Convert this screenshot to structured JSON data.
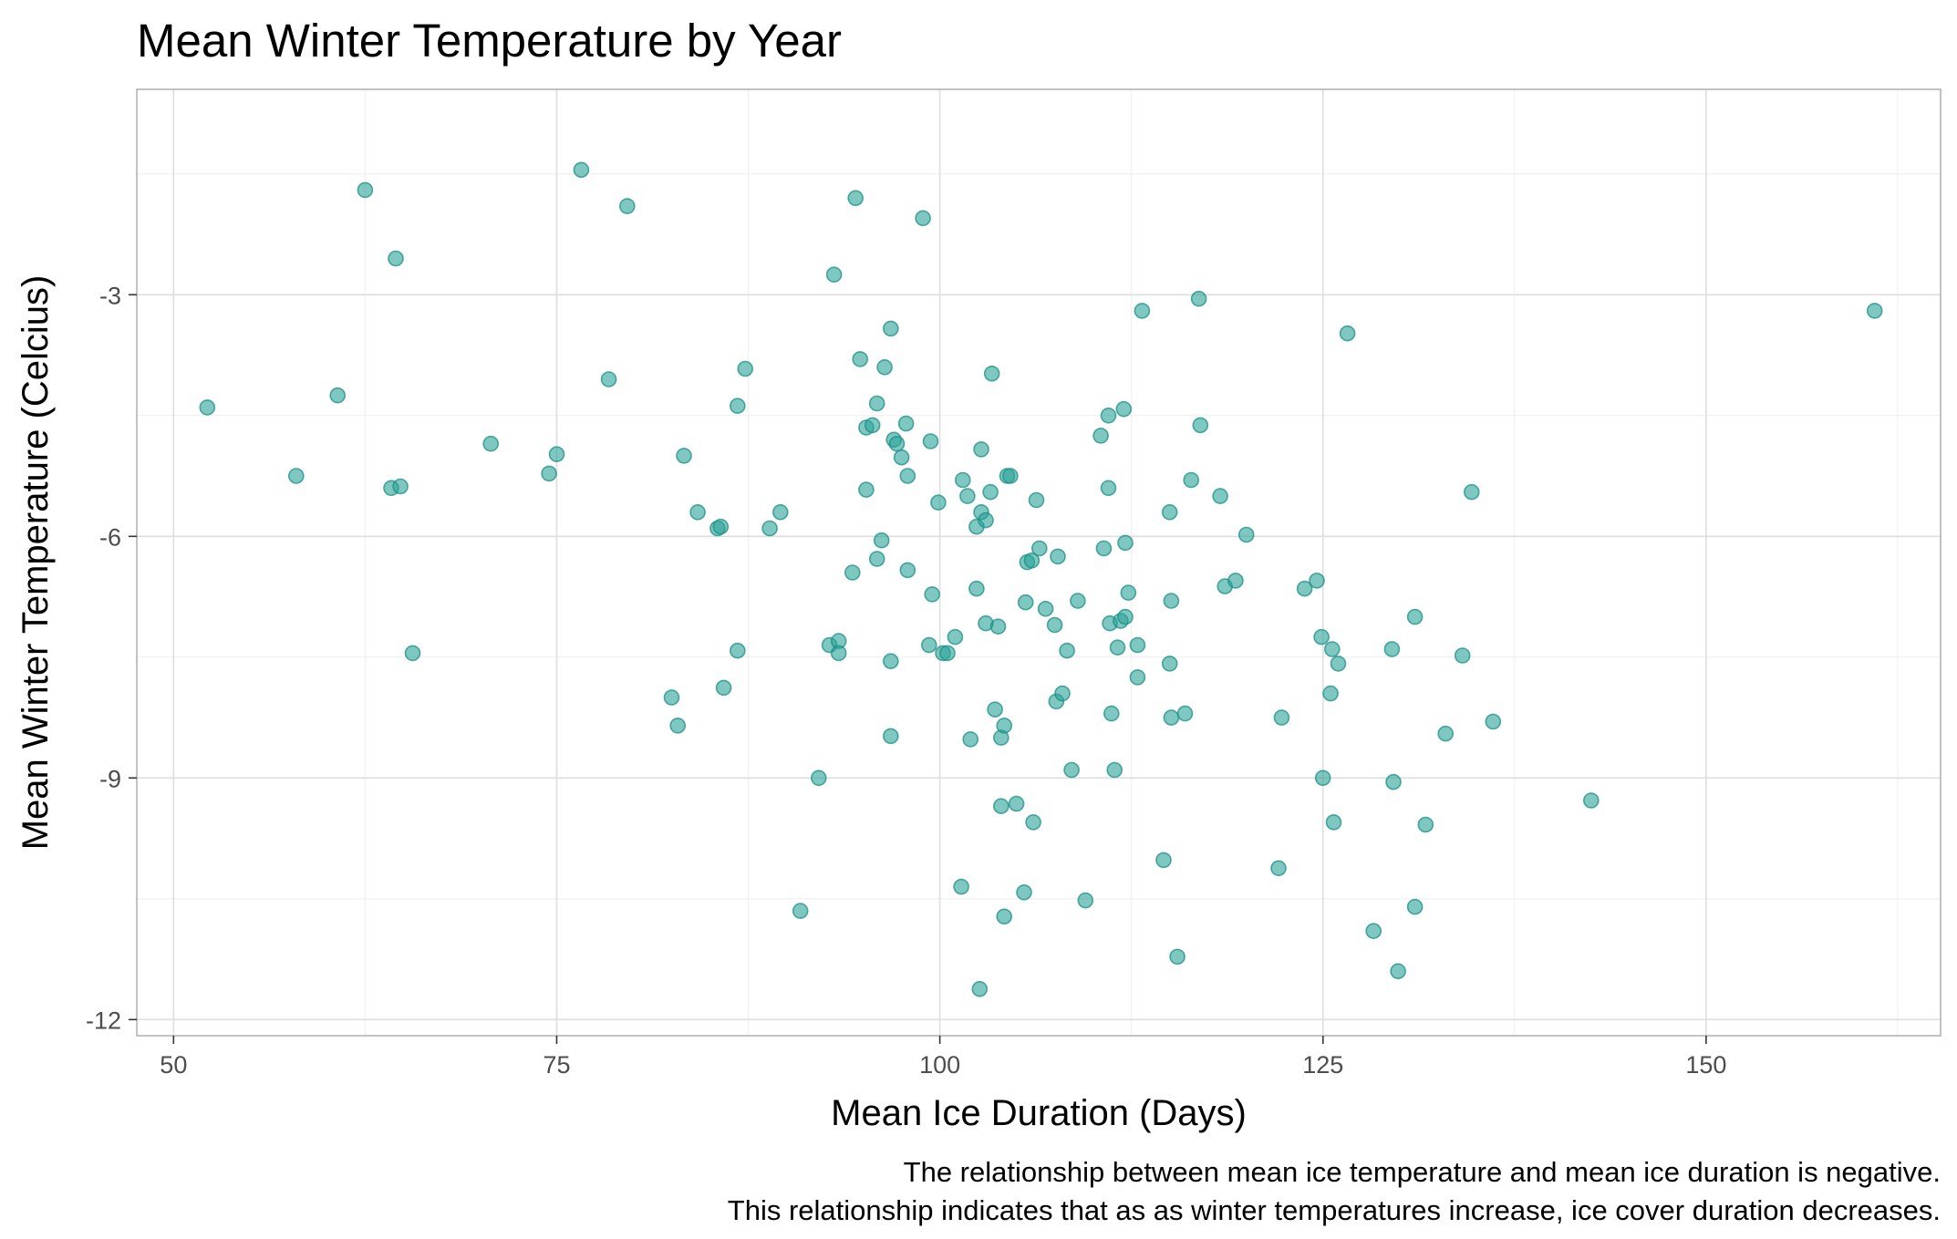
{
  "chart_data": {
    "type": "scatter",
    "title": "Mean Winter Temperature by Year",
    "xlabel": "Mean Ice Duration (Days)",
    "ylabel": "Mean Winter Temperature (Celcius)",
    "caption_lines": [
      "The relationship between mean ice temperature and mean ice duration is negative.",
      "This relationship indicates that as as winter temperatures increase, ice cover duration decreases."
    ],
    "xlim": [
      47.6,
      165.3
    ],
    "ylim": [
      -12.2,
      -0.45
    ],
    "x_ticks": [
      50,
      75,
      100,
      125,
      150
    ],
    "y_ticks": [
      -3,
      -6,
      -9,
      -12
    ],
    "x_tick_labels": [
      "50",
      "75",
      "100",
      "125",
      "150"
    ],
    "y_tick_labels": [
      "-3",
      "-6",
      "-9",
      "-12"
    ],
    "grid": true,
    "point_color": "#2aa198",
    "point_stroke": "#1a8f86",
    "points": [
      [
        52.2,
        -4.4
      ],
      [
        58,
        -5.25
      ],
      [
        60.7,
        -4.25
      ],
      [
        62.5,
        -1.7
      ],
      [
        64.2,
        -5.4
      ],
      [
        64.5,
        -2.55
      ],
      [
        64.8,
        -5.38
      ],
      [
        65.6,
        -7.45
      ],
      [
        70.7,
        -4.85
      ],
      [
        74.5,
        -5.22
      ],
      [
        75.0,
        -4.98
      ],
      [
        76.6,
        -1.45
      ],
      [
        78.4,
        -4.05
      ],
      [
        79.6,
        -1.9
      ],
      [
        82.5,
        -8.0
      ],
      [
        82.9,
        -8.35
      ],
      [
        83.3,
        -5.0
      ],
      [
        84.2,
        -5.7
      ],
      [
        85.5,
        -5.9
      ],
      [
        85.7,
        -5.88
      ],
      [
        85.9,
        -7.88
      ],
      [
        86.8,
        -4.38
      ],
      [
        86.8,
        -7.42
      ],
      [
        87.3,
        -3.92
      ],
      [
        88.9,
        -5.9
      ],
      [
        89.6,
        -5.7
      ],
      [
        90.9,
        -10.65
      ],
      [
        92.1,
        -9.0
      ],
      [
        92.8,
        -7.35
      ],
      [
        93.1,
        -2.75
      ],
      [
        93.4,
        -7.3
      ],
      [
        93.4,
        -7.45
      ],
      [
        94.3,
        -6.45
      ],
      [
        94.5,
        -1.8
      ],
      [
        94.8,
        -3.8
      ],
      [
        95.2,
        -4.65
      ],
      [
        95.2,
        -5.42
      ],
      [
        95.6,
        -4.62
      ],
      [
        95.9,
        -4.35
      ],
      [
        95.9,
        -6.28
      ],
      [
        96.2,
        -6.05
      ],
      [
        96.4,
        -3.9
      ],
      [
        96.8,
        -3.42
      ],
      [
        96.8,
        -7.55
      ],
      [
        96.8,
        -8.48
      ],
      [
        97.0,
        -4.8
      ],
      [
        97.2,
        -4.85
      ],
      [
        97.5,
        -5.02
      ],
      [
        97.8,
        -4.6
      ],
      [
        97.9,
        -5.25
      ],
      [
        97.9,
        -6.42
      ],
      [
        98.9,
        -2.05
      ],
      [
        99.3,
        -7.35
      ],
      [
        99.4,
        -4.82
      ],
      [
        99.5,
        -6.72
      ],
      [
        99.9,
        -5.58
      ],
      [
        100.2,
        -7.45
      ],
      [
        100.5,
        -7.45
      ],
      [
        101.0,
        -7.25
      ],
      [
        101.4,
        -10.35
      ],
      [
        101.5,
        -5.3
      ],
      [
        101.8,
        -5.5
      ],
      [
        102.0,
        -8.52
      ],
      [
        102.4,
        -5.88
      ],
      [
        102.4,
        -6.65
      ],
      [
        102.6,
        -11.62
      ],
      [
        102.7,
        -5.7
      ],
      [
        102.7,
        -4.92
      ],
      [
        103.0,
        -5.8
      ],
      [
        103.0,
        -7.08
      ],
      [
        103.3,
        -5.45
      ],
      [
        103.4,
        -3.98
      ],
      [
        103.6,
        -8.15
      ],
      [
        103.8,
        -7.12
      ],
      [
        104.0,
        -8.5
      ],
      [
        104.0,
        -9.35
      ],
      [
        104.2,
        -8.35
      ],
      [
        104.2,
        -10.72
      ],
      [
        104.4,
        -5.25
      ],
      [
        104.6,
        -5.25
      ],
      [
        105.0,
        -9.32
      ],
      [
        105.5,
        -10.42
      ],
      [
        105.6,
        -6.82
      ],
      [
        105.7,
        -6.32
      ],
      [
        106.0,
        -6.3
      ],
      [
        106.1,
        -9.55
      ],
      [
        106.3,
        -5.55
      ],
      [
        106.5,
        -6.15
      ],
      [
        106.9,
        -6.9
      ],
      [
        107.5,
        -7.1
      ],
      [
        107.6,
        -8.05
      ],
      [
        107.7,
        -6.25
      ],
      [
        108.0,
        -7.95
      ],
      [
        108.3,
        -7.42
      ],
      [
        108.6,
        -8.9
      ],
      [
        109.0,
        -6.8
      ],
      [
        109.5,
        -10.52
      ],
      [
        110.5,
        -4.75
      ],
      [
        110.7,
        -6.15
      ],
      [
        111.0,
        -5.4
      ],
      [
        111.0,
        -4.5
      ],
      [
        111.1,
        -7.08
      ],
      [
        111.2,
        -8.2
      ],
      [
        111.4,
        -8.9
      ],
      [
        111.6,
        -7.38
      ],
      [
        111.8,
        -7.05
      ],
      [
        112.0,
        -4.42
      ],
      [
        112.1,
        -7.0
      ],
      [
        112.1,
        -6.08
      ],
      [
        112.3,
        -6.7
      ],
      [
        112.9,
        -7.35
      ],
      [
        112.9,
        -7.75
      ],
      [
        113.2,
        -3.2
      ],
      [
        114.6,
        -10.02
      ],
      [
        115.0,
        -5.7
      ],
      [
        115.0,
        -7.58
      ],
      [
        115.1,
        -6.8
      ],
      [
        115.1,
        -8.25
      ],
      [
        115.5,
        -11.22
      ],
      [
        116.0,
        -8.2
      ],
      [
        116.4,
        -5.3
      ],
      [
        116.9,
        -3.05
      ],
      [
        117.0,
        -4.62
      ],
      [
        118.3,
        -5.5
      ],
      [
        118.6,
        -6.62
      ],
      [
        119.3,
        -6.55
      ],
      [
        120.0,
        -5.98
      ],
      [
        122.1,
        -10.12
      ],
      [
        122.3,
        -8.25
      ],
      [
        123.8,
        -6.65
      ],
      [
        124.6,
        -6.55
      ],
      [
        124.9,
        -7.25
      ],
      [
        125.0,
        -9.0
      ],
      [
        125.5,
        -7.95
      ],
      [
        125.7,
        -9.55
      ],
      [
        125.6,
        -7.4
      ],
      [
        126.0,
        -7.58
      ],
      [
        126.6,
        -3.48
      ],
      [
        128.3,
        -10.9
      ],
      [
        129.5,
        -7.4
      ],
      [
        129.6,
        -9.05
      ],
      [
        129.9,
        -11.4
      ],
      [
        131.0,
        -7.0
      ],
      [
        131.0,
        -10.6
      ],
      [
        131.7,
        -9.58
      ],
      [
        133.0,
        -8.45
      ],
      [
        134.1,
        -7.48
      ],
      [
        134.7,
        -5.45
      ],
      [
        136.1,
        -8.3
      ],
      [
        142.5,
        -9.28
      ],
      [
        161.0,
        -3.2
      ]
    ]
  }
}
